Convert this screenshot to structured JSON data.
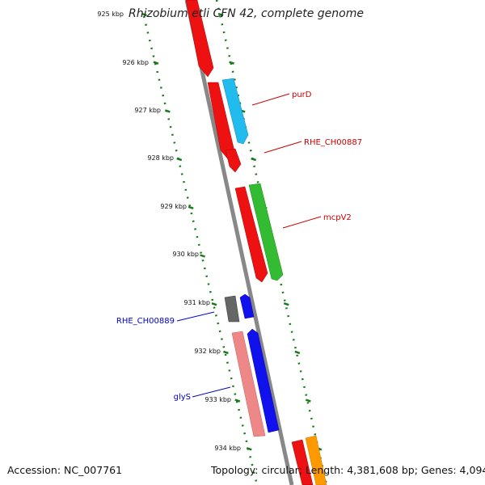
{
  "title": "Rhizobium etli CFN 42, complete genome",
  "footer": {
    "accession": "Accession: NC_007761",
    "summary": "Topology: circular; Length: 4,381,608 bp; Genes: 4,094"
  },
  "ticks": [
    "925 kbp",
    "926 kbp",
    "927 kbp",
    "928 kbp",
    "929 kbp",
    "930 kbp",
    "931 kbp",
    "932 kbp",
    "933 kbp",
    "934 kbp"
  ],
  "genes": [
    {
      "name": "purD",
      "color": "#cc0000"
    },
    {
      "name": "RHE_CH00887",
      "color": "#cc0000"
    },
    {
      "name": "mcpV2",
      "color": "#cc0000"
    },
    {
      "name": "RHE_CH00889",
      "color": "#0000cc"
    },
    {
      "name": "glyS",
      "color": "#0000cc"
    }
  ],
  "colors": {
    "backbone": "#888888",
    "ruler": "#1a7a1a",
    "red_feature": "#ee1111",
    "cyan_feature": "#22bbee",
    "green_feature": "#33bb33",
    "gray_feature": "#666666",
    "blue_feature": "#1111ee",
    "pink_feature": "#ee8888",
    "orange_feature": "#ff9900"
  }
}
